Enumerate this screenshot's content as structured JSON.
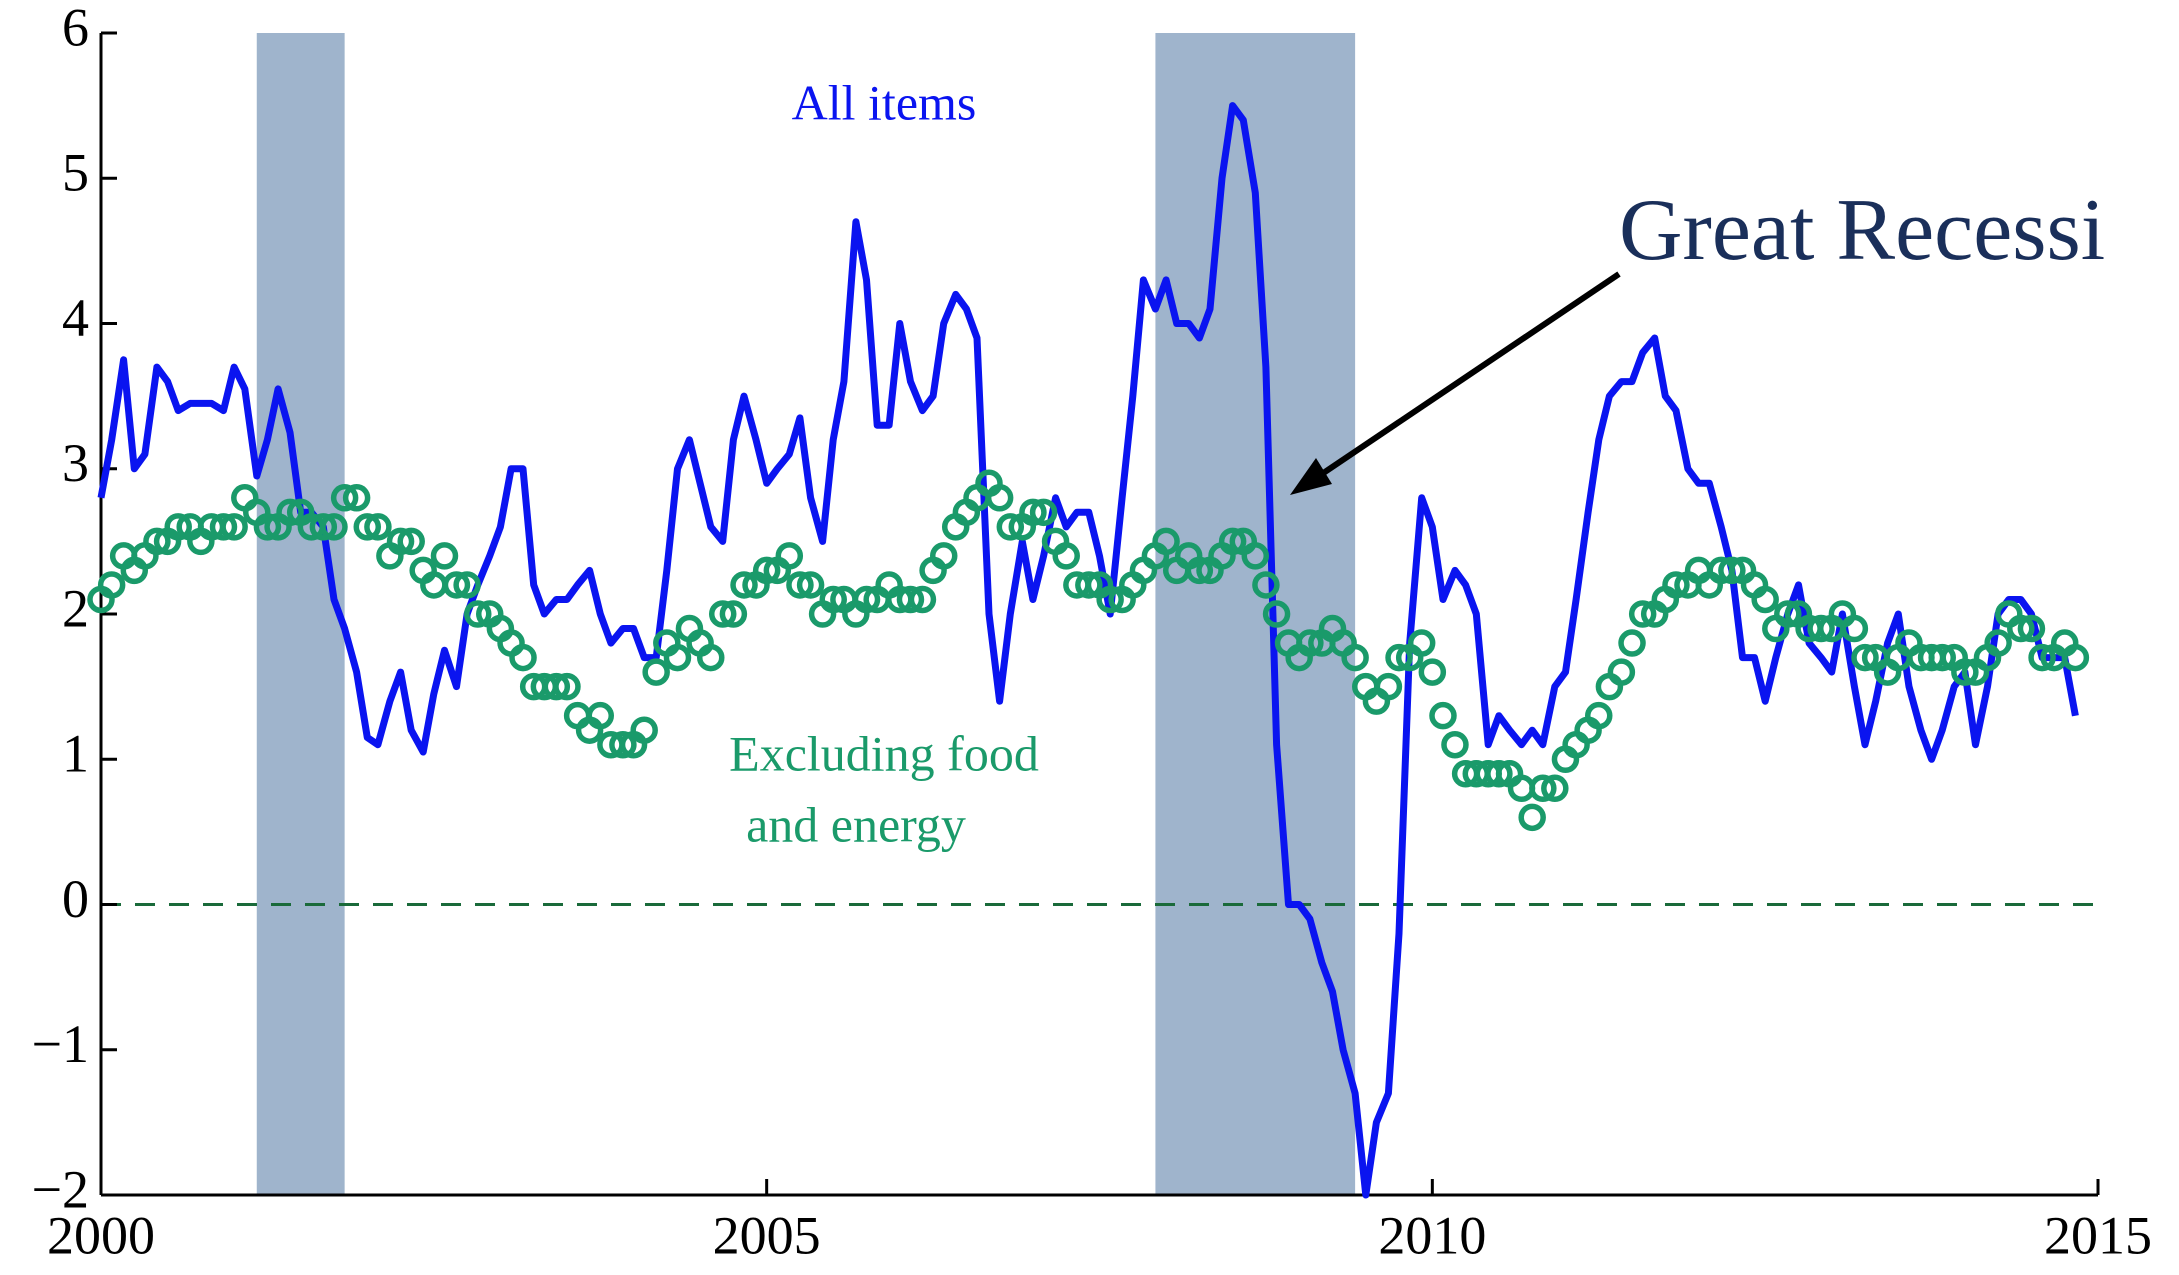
{
  "chart_data": {
    "type": "line",
    "x": [
      2000,
      2000.08,
      2000.17,
      2000.25,
      2000.33,
      2000.42,
      2000.5,
      2000.58,
      2000.67,
      2000.75,
      2000.83,
      2000.92,
      2001,
      2001.08,
      2001.17,
      2001.25,
      2001.33,
      2001.42,
      2001.5,
      2001.58,
      2001.67,
      2001.75,
      2001.83,
      2001.92,
      2002,
      2002.08,
      2002.17,
      2002.25,
      2002.33,
      2002.42,
      2002.5,
      2002.58,
      2002.67,
      2002.75,
      2002.83,
      2002.92,
      2003,
      2003.08,
      2003.17,
      2003.25,
      2003.33,
      2003.42,
      2003.5,
      2003.58,
      2003.67,
      2003.75,
      2003.83,
      2003.92,
      2004,
      2004.08,
      2004.17,
      2004.25,
      2004.33,
      2004.42,
      2004.5,
      2004.58,
      2004.67,
      2004.75,
      2004.83,
      2004.92,
      2005,
      2005.08,
      2005.17,
      2005.25,
      2005.33,
      2005.42,
      2005.5,
      2005.58,
      2005.67,
      2005.75,
      2005.83,
      2005.92,
      2006,
      2006.08,
      2006.17,
      2006.25,
      2006.33,
      2006.42,
      2006.5,
      2006.58,
      2006.67,
      2006.75,
      2006.83,
      2006.92,
      2007,
      2007.08,
      2007.17,
      2007.25,
      2007.33,
      2007.42,
      2007.5,
      2007.58,
      2007.67,
      2007.75,
      2007.83,
      2007.92,
      2008,
      2008.08,
      2008.17,
      2008.25,
      2008.33,
      2008.42,
      2008.5,
      2008.58,
      2008.67,
      2008.75,
      2008.83,
      2008.92,
      2009,
      2009.08,
      2009.17,
      2009.25,
      2009.33,
      2009.42,
      2009.5,
      2009.58,
      2009.67,
      2009.75,
      2009.83,
      2009.92,
      2010,
      2010.08,
      2010.17,
      2010.25,
      2010.33,
      2010.42,
      2010.5,
      2010.58,
      2010.67,
      2010.75,
      2010.83,
      2010.92,
      2011,
      2011.08,
      2011.17,
      2011.25,
      2011.33,
      2011.42,
      2011.5,
      2011.58,
      2011.67,
      2011.75,
      2011.83,
      2011.92,
      2012,
      2012.08,
      2012.17,
      2012.25,
      2012.33,
      2012.42,
      2012.5,
      2012.58,
      2012.67,
      2012.75,
      2012.83,
      2012.92,
      2013,
      2013.08,
      2013.17,
      2013.25,
      2013.33,
      2013.42,
      2013.5,
      2013.58,
      2013.67,
      2013.75,
      2013.83,
      2013.92,
      2014,
      2014.08,
      2014.17,
      2014.25,
      2014.33,
      2014.42,
      2014.5,
      2014.58,
      2014.67,
      2014.75,
      2014.83
    ],
    "series": [
      {
        "name": "All items",
        "color": "#0a14f0",
        "style": "line",
        "values": [
          2.8,
          3.2,
          3.75,
          3.0,
          3.1,
          3.7,
          3.6,
          3.4,
          3.45,
          3.45,
          3.45,
          3.4,
          3.7,
          3.55,
          2.95,
          3.2,
          3.55,
          3.25,
          2.7,
          2.7,
          2.6,
          2.1,
          1.9,
          1.6,
          1.15,
          1.1,
          1.4,
          1.6,
          1.2,
          1.05,
          1.45,
          1.75,
          1.5,
          2.0,
          2.2,
          2.4,
          2.6,
          3.0,
          3.0,
          2.2,
          2.0,
          2.1,
          2.1,
          2.2,
          2.3,
          2.0,
          1.8,
          1.9,
          1.9,
          1.7,
          1.7,
          2.3,
          3.0,
          3.2,
          2.9,
          2.6,
          2.5,
          3.2,
          3.5,
          3.2,
          2.9,
          3.0,
          3.1,
          3.35,
          2.8,
          2.5,
          3.2,
          3.6,
          4.7,
          4.3,
          3.3,
          3.3,
          4.0,
          3.6,
          3.4,
          3.5,
          4.0,
          4.2,
          4.1,
          3.9,
          2.0,
          1.4,
          2.0,
          2.5,
          2.1,
          2.4,
          2.8,
          2.6,
          2.7,
          2.7,
          2.4,
          2.0,
          2.8,
          3.5,
          4.3,
          4.1,
          4.3,
          4.0,
          4.0,
          3.9,
          4.1,
          5.0,
          5.5,
          5.4,
          4.9,
          3.7,
          1.1,
          0.0,
          0.0,
          -0.1,
          -0.4,
          -0.6,
          -1.0,
          -1.3,
          -2.0,
          -1.5,
          -1.3,
          -0.2,
          1.8,
          2.8,
          2.6,
          2.1,
          2.3,
          2.2,
          2.0,
          1.1,
          1.3,
          1.2,
          1.1,
          1.2,
          1.1,
          1.5,
          1.6,
          2.1,
          2.7,
          3.2,
          3.5,
          3.6,
          3.6,
          3.8,
          3.9,
          3.5,
          3.4,
          3.0,
          2.9,
          2.9,
          2.6,
          2.3,
          1.7,
          1.7,
          1.4,
          1.7,
          2.0,
          2.2,
          1.8,
          1.7,
          1.6,
          2.0,
          1.5,
          1.1,
          1.4,
          1.8,
          2.0,
          1.5,
          1.2,
          1.0,
          1.2,
          1.5,
          1.6,
          1.1,
          1.5,
          2.0,
          2.1,
          2.1,
          2.0,
          1.7,
          1.7,
          1.7,
          1.3
        ]
      },
      {
        "name": "Excluding food and energy",
        "color": "#1a9a6a",
        "style": "markers",
        "values": [
          2.1,
          2.2,
          2.4,
          2.3,
          2.4,
          2.5,
          2.5,
          2.6,
          2.6,
          2.5,
          2.6,
          2.6,
          2.6,
          2.8,
          2.7,
          2.6,
          2.6,
          2.7,
          2.7,
          2.6,
          2.6,
          2.6,
          2.8,
          2.8,
          2.6,
          2.6,
          2.4,
          2.5,
          2.5,
          2.3,
          2.2,
          2.4,
          2.2,
          2.2,
          2.0,
          2.0,
          1.9,
          1.8,
          1.7,
          1.5,
          1.5,
          1.5,
          1.5,
          1.3,
          1.2,
          1.3,
          1.1,
          1.1,
          1.1,
          1.2,
          1.6,
          1.8,
          1.7,
          1.9,
          1.8,
          1.7,
          2.0,
          2.0,
          2.2,
          2.2,
          2.3,
          2.3,
          2.4,
          2.2,
          2.2,
          2.0,
          2.1,
          2.1,
          2.0,
          2.1,
          2.1,
          2.2,
          2.1,
          2.1,
          2.1,
          2.3,
          2.4,
          2.6,
          2.7,
          2.8,
          2.9,
          2.8,
          2.6,
          2.6,
          2.7,
          2.7,
          2.5,
          2.4,
          2.2,
          2.2,
          2.2,
          2.1,
          2.1,
          2.2,
          2.3,
          2.4,
          2.5,
          2.3,
          2.4,
          2.3,
          2.3,
          2.4,
          2.5,
          2.5,
          2.4,
          2.2,
          2.0,
          1.8,
          1.7,
          1.8,
          1.8,
          1.9,
          1.8,
          1.7,
          1.5,
          1.4,
          1.5,
          1.7,
          1.7,
          1.8,
          1.6,
          1.3,
          1.1,
          0.9,
          0.9,
          0.9,
          0.9,
          0.9,
          0.8,
          0.6,
          0.8,
          0.8,
          1.0,
          1.1,
          1.2,
          1.3,
          1.5,
          1.6,
          1.8,
          2.0,
          2.0,
          2.1,
          2.2,
          2.2,
          2.3,
          2.2,
          2.3,
          2.3,
          2.3,
          2.2,
          2.1,
          1.9,
          2.0,
          2.0,
          1.9,
          1.9,
          1.9,
          2.0,
          1.9,
          1.7,
          1.7,
          1.6,
          1.7,
          1.8,
          1.7,
          1.7,
          1.7,
          1.7,
          1.6,
          1.6,
          1.7,
          1.8,
          2.0,
          1.9,
          1.9,
          1.7,
          1.7,
          1.8,
          1.7
        ]
      }
    ],
    "xlim": [
      2000,
      2015
    ],
    "xticks": [
      2000,
      2005,
      2010,
      2015
    ],
    "ylim": [
      -2,
      6
    ],
    "yticks": [
      {
        "value": -2,
        "label": "−2"
      },
      {
        "value": -1,
        "label": "−1"
      },
      0,
      1,
      2,
      3,
      4,
      5,
      6
    ],
    "shaded_regions": [
      [
        2001.17,
        2001.83
      ],
      [
        2007.92,
        2009.42
      ]
    ],
    "shade_color": "#9fb4cc",
    "zero_line": true,
    "annotations": [
      "All items",
      "Excluding food",
      "and energy",
      "Great Recessi"
    ]
  }
}
